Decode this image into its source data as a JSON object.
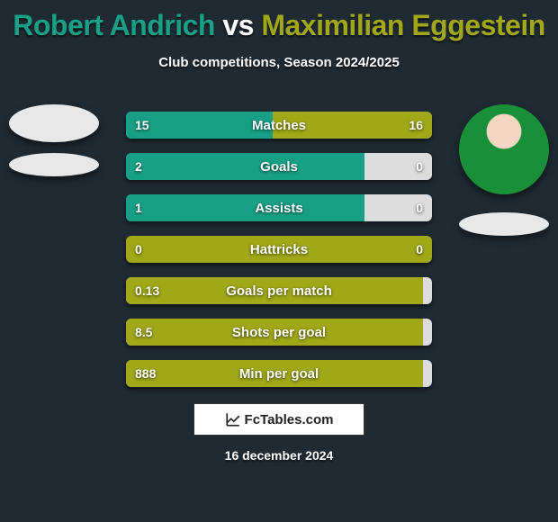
{
  "title": {
    "player1": "Robert Andrich",
    "vs": " vs ",
    "player2": "Maximilian Eggestein",
    "player1_color": "#17a085",
    "player2_color": "#a0a817"
  },
  "subtitle": "Club competitions, Season 2024/2025",
  "bar_colors": {
    "left": "#17a085",
    "right": "#a0a817",
    "neutral": "#dcdcdc"
  },
  "stats": [
    {
      "label": "Matches",
      "left_val": "15",
      "right_val": "16",
      "left_pct": 48,
      "right_pct": 52
    },
    {
      "label": "Goals",
      "left_val": "2",
      "right_val": "0",
      "left_pct": 78,
      "right_pct": 0
    },
    {
      "label": "Assists",
      "left_val": "1",
      "right_val": "0",
      "left_pct": 78,
      "right_pct": 0
    },
    {
      "label": "Hattricks",
      "left_val": "0",
      "right_val": "0",
      "left_pct": 0,
      "right_pct": 0
    },
    {
      "label": "Goals per match",
      "left_val": "0.13",
      "right_val": "",
      "left_pct": 97,
      "right_pct": 0
    },
    {
      "label": "Shots per goal",
      "left_val": "8.5",
      "right_val": "",
      "left_pct": 97,
      "right_pct": 0
    },
    {
      "label": "Min per goal",
      "left_val": "888",
      "right_val": "",
      "left_pct": 97,
      "right_pct": 0
    }
  ],
  "brand": "FcTables.com",
  "date": "16 december 2024"
}
